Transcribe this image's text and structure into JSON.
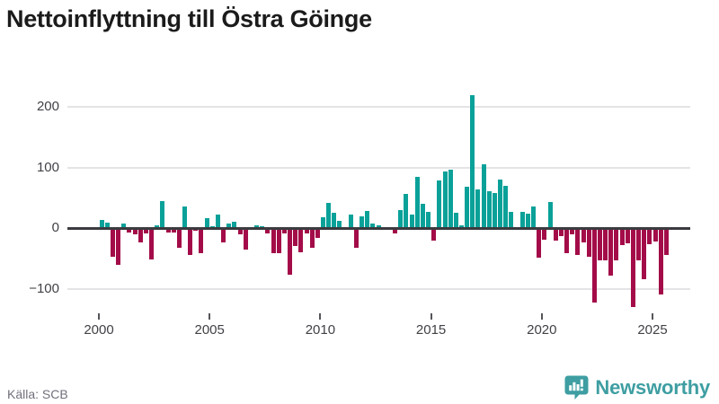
{
  "title": "Nettoinflyttning till Östra Göinge",
  "source": "Källa: SCB",
  "brand": {
    "name": "Newsworthy",
    "color": "#3e9ea2",
    "icon": "bar-chart-speech-bubble-icon"
  },
  "colors": {
    "positive_bar": "#0aa199",
    "negative_bar": "#a30c48",
    "grid": "#e4e4e6",
    "zero_axis": "#3b3b3f",
    "tick_text": "#414147",
    "title_text": "#1b1b1b",
    "muted_text": "#71717c"
  },
  "chart_data": {
    "type": "bar",
    "title": "Nettoinflyttning till Östra Göinge",
    "xlabel": "",
    "ylabel": "",
    "frequency": "quarterly",
    "x_start": "2000Q1",
    "x_end": "2025Q3",
    "yticks": [
      200,
      100,
      0,
      -100
    ],
    "ylim": [
      -140,
      240
    ],
    "xticks": [
      "2000",
      "2005",
      "2010",
      "2015",
      "2020",
      "2025"
    ],
    "grid": true,
    "legend": false,
    "values": [
      13,
      9,
      -47,
      -60,
      8,
      -8,
      -11,
      -24,
      -9,
      -52,
      4,
      45,
      -7,
      -7,
      -33,
      35,
      -44,
      -5,
      -42,
      16,
      3,
      22,
      -23,
      8,
      11,
      -10,
      -36,
      0,
      5,
      3,
      -9,
      -42,
      -41,
      -9,
      -77,
      -29,
      -40,
      -9,
      -32,
      -16,
      18,
      42,
      25,
      12,
      0,
      22,
      -32,
      20,
      28,
      7,
      4,
      0,
      2,
      -9,
      29,
      57,
      22,
      85,
      40,
      26,
      -21,
      79,
      94,
      97,
      25,
      5,
      68,
      220,
      63,
      105,
      61,
      58,
      80,
      70,
      27,
      0,
      27,
      23,
      36,
      -49,
      -19,
      43,
      -20,
      -14,
      -41,
      -11,
      -45,
      -23,
      -48,
      -123,
      -54,
      -54,
      -79,
      -54,
      -28,
      -25,
      -131,
      -53,
      -85,
      -26,
      -22,
      -109,
      -44
    ]
  }
}
